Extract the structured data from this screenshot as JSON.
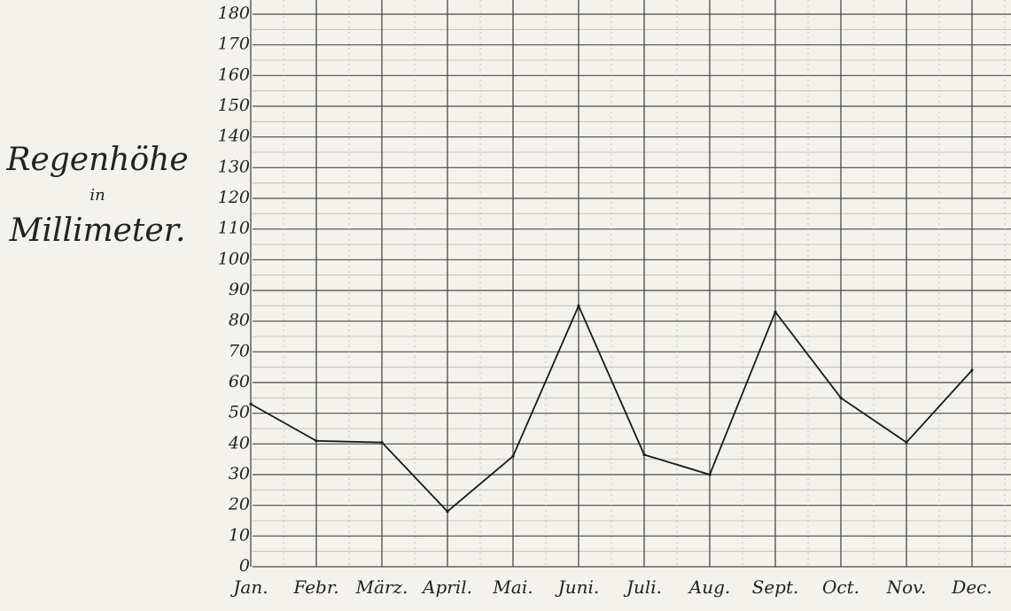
{
  "title": {
    "line1": "Regenhöhe",
    "line2": "in",
    "line3": "Millimeter."
  },
  "colors": {
    "paper": "#f4f2ed",
    "ink": "#1a1a1a",
    "grid": "#4a4844"
  },
  "chart_data": {
    "type": "line",
    "ylabel": "Regenhöhe in Millimeter.",
    "ylim": [
      0,
      180
    ],
    "yticks": [
      "0",
      "10",
      "20",
      "30",
      "40",
      "50",
      "60",
      "70",
      "80",
      "90",
      "100",
      "110",
      "120",
      "130",
      "140",
      "150",
      "160",
      "170",
      "180"
    ],
    "categories": [
      "Jan.",
      "Febr.",
      "März.",
      "April.",
      "Mai.",
      "Juni.",
      "Juli.",
      "Aug.",
      "Sept.",
      "Oct.",
      "Nov.",
      "Dec."
    ],
    "grid": true,
    "series": [
      {
        "values": [
          53,
          41,
          40.5,
          18,
          36,
          85,
          36.5,
          30,
          83,
          55,
          40.5,
          64
        ]
      }
    ]
  }
}
